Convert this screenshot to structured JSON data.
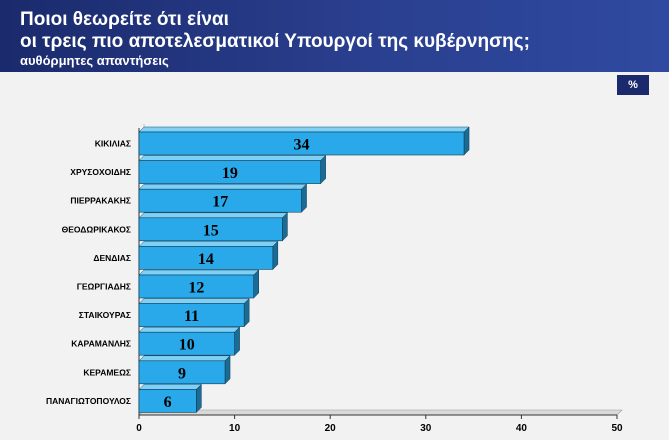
{
  "header": {
    "title_line1": "Ποιοι θεωρείτε ότι είναι",
    "title_line2": "οι τρεις πιο αποτελεσματικοί Υπουργοί της κυβέρνησης;",
    "subtitle": "αυθόρμητες απαντήσεις"
  },
  "unit_badge": "%",
  "colors": {
    "header": "#1a2a6c",
    "bar_front": "#29a9ea",
    "bar_top": "#7fd0f6",
    "bar_side": "#1a6c96",
    "background": "#f2f2f2"
  },
  "chart_data": {
    "type": "bar",
    "orientation": "horizontal",
    "categories": [
      "ΚΙΚΙΛΙΑΣ",
      "ΧΡΥΣΟΧΟΙΔΗΣ",
      "ΠΙΕΡΡΑΚΑΚΗΣ",
      "ΘΕΟΔΩΡΙΚΑΚΟΣ",
      "ΔΕΝΔΙΑΣ",
      "ΓΕΩΡΓΙΑΔΗΣ",
      "ΣΤΑΙΚΟΥΡΑΣ",
      "ΚΑΡΑΜΑΝΛΗΣ",
      "ΚΕΡΑΜΕΩΣ",
      "ΠΑΝΑΓΙΩΤΟΠΟΥΛΟΣ"
    ],
    "values": [
      34,
      19,
      17,
      15,
      14,
      12,
      11,
      10,
      9,
      6
    ],
    "xlim": [
      0,
      50
    ],
    "xticks": [
      0,
      10,
      20,
      30,
      40,
      50
    ],
    "grid": false,
    "data_labels": true
  }
}
